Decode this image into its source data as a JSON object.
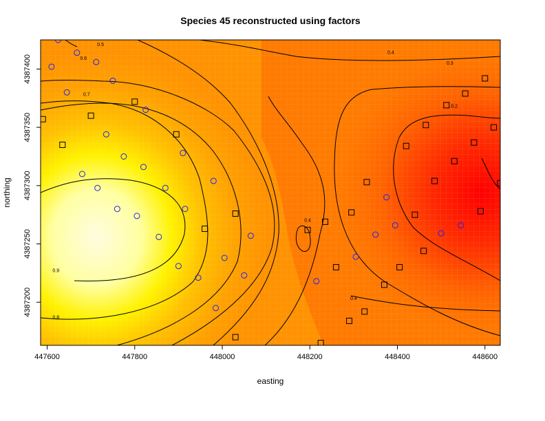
{
  "chart_data": {
    "type": "heatmap",
    "title": "Species 45 reconstructed using factors",
    "xlabel": "easting",
    "ylabel": "northing",
    "xlim": [
      447585,
      448635
    ],
    "ylim": [
      4387163,
      4387425
    ],
    "x_ticks": [
      447600,
      447800,
      448000,
      448200,
      448400,
      448600
    ],
    "y_ticks": [
      4387200,
      4387250,
      4387300,
      4387350,
      4387400
    ],
    "x_tick_labels": [
      "447600",
      "447800",
      "448000",
      "448200",
      "448400",
      "448600"
    ],
    "y_tick_labels": [
      "4387200",
      "4387250",
      "4387300",
      "4387350",
      "4387400"
    ],
    "contour_levels": [
      0.2,
      0.3,
      0.4,
      0.5,
      0.6,
      0.7,
      0.8,
      0.9
    ],
    "contour_labels": [
      {
        "text": "0.5",
        "x": 447722,
        "y": 4387421
      },
      {
        "text": "0.4",
        "x": 448385,
        "y": 4387414
      },
      {
        "text": "0.6",
        "x": 447683,
        "y": 4387409
      },
      {
        "text": "0.3",
        "x": 448520,
        "y": 4387405
      },
      {
        "text": "0.7",
        "x": 447690,
        "y": 4387378
      },
      {
        "text": "0.2",
        "x": 448530,
        "y": 4387368
      },
      {
        "text": "0.4",
        "x": 448195,
        "y": 4387270
      },
      {
        "text": "0.9",
        "x": 447620,
        "y": 4387227
      },
      {
        "text": "0.4",
        "x": 448300,
        "y": 4387203
      },
      {
        "text": "0.8",
        "x": 447620,
        "y": 4387187
      }
    ],
    "color_scale": [
      "#ff0000",
      "#ff6200",
      "#ff9900",
      "#ffc000",
      "#fff200",
      "#ffffa0",
      "#fffce0"
    ],
    "series": [
      {
        "name": "",
        "marker": "circle",
        "color": "#2222ee",
        "points": [
          [
            447625,
            4387425
          ],
          [
            447668,
            4387414
          ],
          [
            447610,
            4387402
          ],
          [
            447712,
            4387406
          ],
          [
            447750,
            4387390
          ],
          [
            447645,
            4387380
          ],
          [
            447825,
            4387365
          ],
          [
            447735,
            4387344
          ],
          [
            447775,
            4387325
          ],
          [
            447910,
            4387328
          ],
          [
            447680,
            4387310
          ],
          [
            447820,
            4387316
          ],
          [
            447980,
            4387304
          ],
          [
            447715,
            4387298
          ],
          [
            447870,
            4387298
          ],
          [
            447760,
            4387280
          ],
          [
            447915,
            4387280
          ],
          [
            447805,
            4387274
          ],
          [
            448065,
            4387257
          ],
          [
            447855,
            4387256
          ],
          [
            447900,
            4387231
          ],
          [
            448005,
            4387238
          ],
          [
            447945,
            4387221
          ],
          [
            448050,
            4387223
          ],
          [
            447985,
            4387195
          ],
          [
            448215,
            4387218
          ],
          [
            448375,
            4387290
          ],
          [
            448395,
            4387266
          ],
          [
            448350,
            4387258
          ],
          [
            448305,
            4387239
          ],
          [
            448500,
            4387259
          ],
          [
            448545,
            4387266
          ]
        ]
      },
      {
        "name": "",
        "marker": "square",
        "color": "#000000",
        "points": [
          [
            447590,
            4387357
          ],
          [
            447635,
            4387335
          ],
          [
            447700,
            4387360
          ],
          [
            447800,
            4387372
          ],
          [
            447895,
            4387344
          ],
          [
            448030,
            4387276
          ],
          [
            447960,
            4387263
          ],
          [
            448195,
            4387262
          ],
          [
            448235,
            4387269
          ],
          [
            448295,
            4387277
          ],
          [
            448330,
            4387303
          ],
          [
            448420,
            4387334
          ],
          [
            448465,
            4387352
          ],
          [
            448555,
            4387379
          ],
          [
            448512,
            4387369
          ],
          [
            448600,
            4387392
          ],
          [
            448620,
            4387350
          ],
          [
            448575,
            4387337
          ],
          [
            448530,
            4387321
          ],
          [
            448485,
            4387304
          ],
          [
            448440,
            4387275
          ],
          [
            448590,
            4387278
          ],
          [
            448635,
            4387302
          ],
          [
            448460,
            4387244
          ],
          [
            448405,
            4387230
          ],
          [
            448260,
            4387230
          ],
          [
            448370,
            4387215
          ],
          [
            448325,
            4387192
          ],
          [
            448290,
            4387184
          ],
          [
            448030,
            4387170
          ],
          [
            448225,
            4387165
          ]
        ]
      }
    ],
    "grid": false,
    "legend": "none"
  }
}
